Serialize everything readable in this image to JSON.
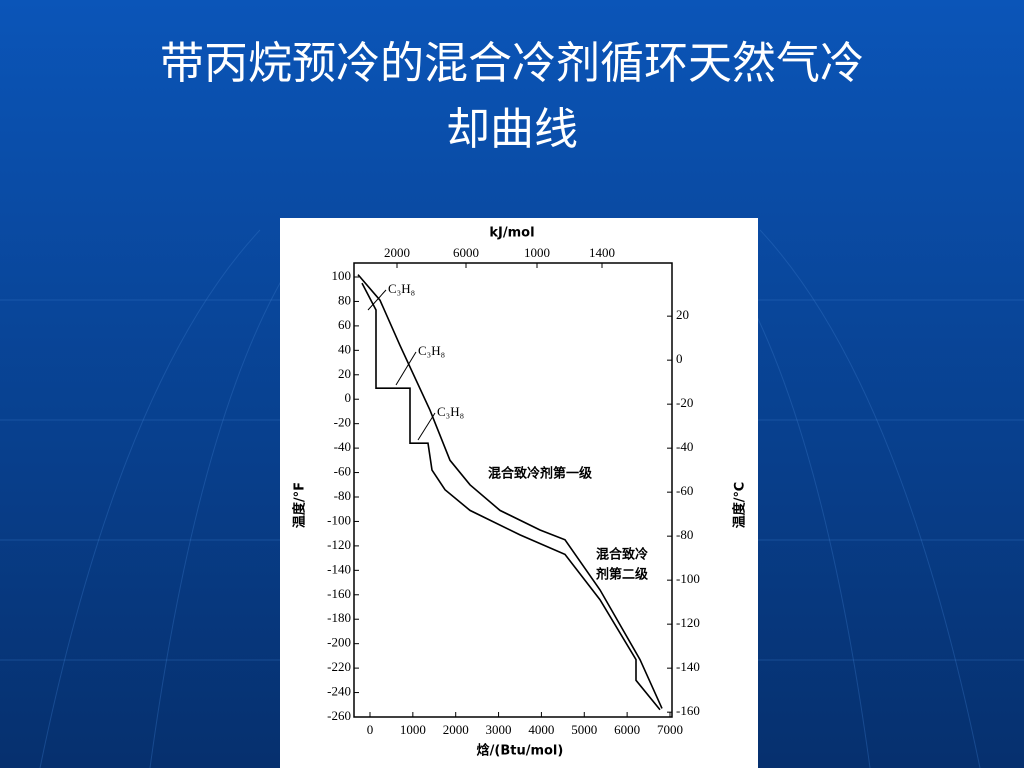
{
  "chart_data": {
    "type": "line",
    "title": "带丙烷预冷的混合冷剂循环天然气冷却曲线",
    "x_label": "焓/(Btu/mol)",
    "y_label": "温度/°F",
    "y2_label": "温度/℃",
    "x2_label": "kJ/mol",
    "xlim": [
      -373,
      7047
    ],
    "xticks": [
      0,
      1000,
      2000,
      3000,
      4000,
      5000,
      6000,
      7000
    ],
    "ylim": [
      -260,
      100
    ],
    "yticks": [
      100,
      80,
      60,
      40,
      20,
      0,
      -20,
      -40,
      -60,
      -80,
      -100,
      -120,
      -140,
      -160,
      -180,
      -200,
      -220,
      -240,
      -260
    ],
    "y2lim": [
      -162.2,
      37.8
    ],
    "y2ticks": [
      20,
      0,
      -20,
      -40,
      -60,
      -80,
      -100,
      -120,
      -140,
      -160
    ],
    "x2ticks": [
      "2000",
      "6000",
      "1000",
      "1400"
    ],
    "annotations": [
      "C₃H₈",
      "C₃H₈",
      "C₃H₈",
      "混合致冷剂第一级",
      "混合致冷",
      "剂第二级"
    ],
    "series": [
      {
        "color": "#000000",
        "x": [
          -280,
          233,
          700,
          1400,
          1867,
          2333,
          3033,
          3967,
          4550,
          5367,
          6300,
          6813
        ],
        "values": [
          102,
          81,
          44,
          -9,
          -50,
          -70,
          -91,
          -107,
          -115,
          -156,
          -213,
          -253
        ]
      },
      {
        "color": "#000000",
        "x": [
          -187,
          140,
          140,
          933,
          933,
          1353,
          1447,
          1750,
          2333,
          3500,
          4550,
          5367,
          6207,
          6207,
          6767
        ],
        "values": [
          95,
          73,
          9,
          9,
          -36,
          -36,
          -58,
          -74,
          -91,
          -111,
          -127,
          -164,
          -213,
          -230,
          -254
        ]
      }
    ]
  }
}
